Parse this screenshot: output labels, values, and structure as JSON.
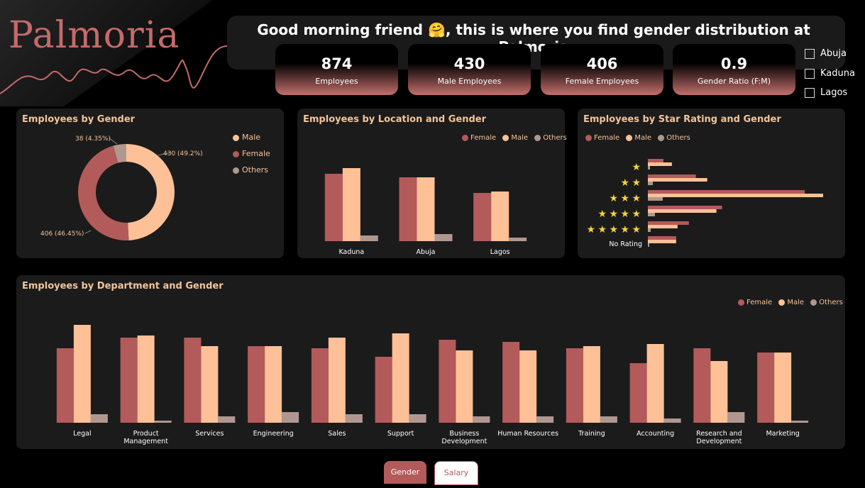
{
  "app": {
    "logo": "Palmoria",
    "headline_prefix": "Good morning friend",
    "headline_emoji": "🤗",
    "headline_suffix": ", this is where you find gender distribution at Palmoria"
  },
  "kpis": [
    {
      "value": "874",
      "label": "Employees"
    },
    {
      "value": "430",
      "label": "Male Employees"
    },
    {
      "value": "406",
      "label": "Female Employees"
    },
    {
      "value": "0.9",
      "label": "Gender Ratio (F:M)"
    }
  ],
  "slicer": [
    "Abuja",
    "Kaduna",
    "Lagos"
  ],
  "colors": {
    "female": "#b35a5a",
    "male": "#fec197",
    "others": "#b09890",
    "accent": "#c56a6a",
    "star": "#f5d33a"
  },
  "gender_panel": {
    "title": "Employees by Gender",
    "legend": [
      "Male",
      "Female",
      "Others"
    ],
    "labels": {
      "male": "430 (49.2%)",
      "female": "406 (46.45%)",
      "others": "38 (4.35%)"
    }
  },
  "location_panel": {
    "title": "Employees by Location and Gender",
    "legend": [
      "Female",
      "Male",
      "Others"
    ]
  },
  "rating_panel": {
    "title": "Employees by Star Rating and Gender",
    "legend": [
      "Female",
      "Male",
      "Others"
    ],
    "no_rating_label": "No Rating"
  },
  "department_panel": {
    "title": "Employees by Department and Gender",
    "legend": [
      "Female",
      "Male",
      "Others"
    ]
  },
  "tabs": {
    "gender": "Gender",
    "salary": "Salary"
  },
  "chart_data": [
    {
      "type": "pie",
      "title": "Employees by Gender",
      "categories": [
        "Male",
        "Female",
        "Others"
      ],
      "values": [
        430,
        406,
        38
      ]
    },
    {
      "type": "bar",
      "title": "Employees by Location and Gender",
      "categories": [
        "Kaduna",
        "Abuja",
        "Lagos"
      ],
      "ylim": [
        0,
        120
      ],
      "series": [
        {
          "name": "Female",
          "values": [
            95,
            90,
            68
          ]
        },
        {
          "name": "Male",
          "values": [
            103,
            90,
            70
          ]
        },
        {
          "name": "Others",
          "values": [
            8,
            10,
            5
          ]
        }
      ]
    },
    {
      "type": "bar",
      "orientation": "horizontal",
      "title": "Employees by Star Rating and Gender",
      "categories": [
        "1 star",
        "2 stars",
        "3 stars",
        "4 stars",
        "5 stars",
        "No Rating"
      ],
      "series": [
        {
          "name": "Female",
          "values": [
            22,
            68,
            222,
            105,
            58,
            40
          ]
        },
        {
          "name": "Male",
          "values": [
            34,
            84,
            248,
            97,
            42,
            40
          ]
        },
        {
          "name": "Others",
          "values": [
            3,
            7,
            21,
            10,
            4,
            2
          ]
        }
      ]
    },
    {
      "type": "bar",
      "title": "Employees by Department and Gender",
      "categories": [
        "Legal",
        "Product Management",
        "Services",
        "Engineering",
        "Sales",
        "Support",
        "Business Development",
        "Human Resources",
        "Training",
        "Accounting",
        "Research and Development",
        "Marketing"
      ],
      "ylim": [
        0,
        50
      ],
      "series": [
        {
          "name": "Female",
          "values": [
            35,
            40,
            40,
            36,
            35,
            31,
            39,
            38,
            35,
            28,
            35,
            33
          ]
        },
        {
          "name": "Male",
          "values": [
            46,
            41,
            36,
            36,
            40,
            42,
            34,
            34,
            36,
            37,
            29,
            33
          ]
        },
        {
          "name": "Others",
          "values": [
            4,
            1,
            3,
            5,
            4,
            4,
            3,
            3,
            3,
            2,
            5,
            1
          ]
        }
      ]
    }
  ]
}
